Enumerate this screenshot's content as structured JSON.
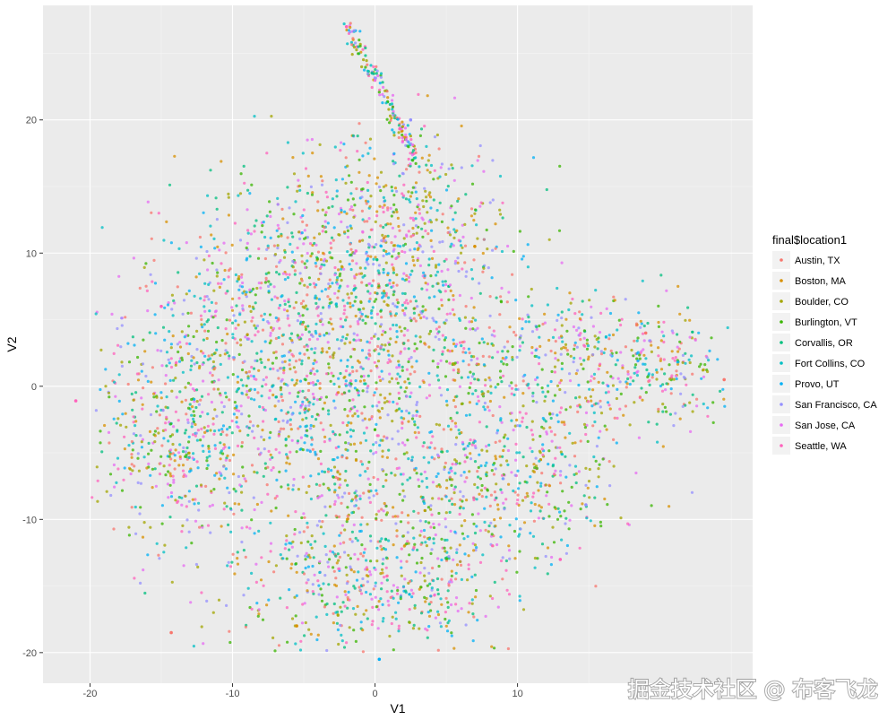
{
  "chart_data": {
    "type": "scatter",
    "title": "",
    "xlabel": "V1",
    "ylabel": "V2",
    "xlim": [
      -23.3,
      26.5
    ],
    "ylim": [
      -22.3,
      28.6
    ],
    "x_ticks": [
      -20,
      -10,
      0,
      10
    ],
    "x_tick_labels": [
      "-20",
      "-10",
      "0",
      "10"
    ],
    "y_ticks": [
      -20,
      -10,
      0,
      10,
      20
    ],
    "y_tick_labels": [
      "-20",
      "-10",
      "0",
      "10",
      "20"
    ],
    "grid": true,
    "legend": {
      "title": "final$location1",
      "position": "right"
    },
    "background": "#ebebeb",
    "series": [
      {
        "name": "Austin, TX",
        "color": "#F8766D"
      },
      {
        "name": "Boston, MA",
        "color": "#D89000"
      },
      {
        "name": "Boulder, CO",
        "color": "#A3A500"
      },
      {
        "name": "Burlington, VT",
        "color": "#39B600"
      },
      {
        "name": "Corvallis, OR",
        "color": "#00BF7D"
      },
      {
        "name": "Fort Collins, CO",
        "color": "#00BFC4"
      },
      {
        "name": "Provo, UT",
        "color": "#00B0F6"
      },
      {
        "name": "San Francisco, CA",
        "color": "#9590FF"
      },
      {
        "name": "San Jose, CA",
        "color": "#E76BF3"
      },
      {
        "name": "Seattle, WA",
        "color": "#FF62BC"
      }
    ],
    "sample_points": [
      {
        "series": "Austin, TX",
        "x": -14.3,
        "y": -18.5
      },
      {
        "series": "Boston, MA",
        "x": -5.5,
        "y": -18.0
      },
      {
        "series": "Seattle, WA",
        "x": -21.0,
        "y": -1.1
      },
      {
        "series": "Provo, UT",
        "x": 0.3,
        "y": -20.5
      },
      {
        "series": "Austin, TX",
        "x": 24.5,
        "y": 0.5
      },
      {
        "series": "Seattle, WA",
        "x": -2.0,
        "y": 27.0
      },
      {
        "series": "San Francisco, CA",
        "x": 2.5,
        "y": 20.0
      },
      {
        "series": "Boston, MA",
        "x": 7.0,
        "y": 10.5
      },
      {
        "series": "Seattle, WA",
        "x": 13.0,
        "y": -13.0
      },
      {
        "series": "San Francisco, CA",
        "x": 14.8,
        "y": -8.9
      },
      {
        "series": "Austin, TX",
        "x": 19.0,
        "y": 4.0
      },
      {
        "series": "Seattle, WA",
        "x": -15.0,
        "y": 6.0
      }
    ]
  },
  "watermark": "掘金技术社区 @ 布客飞龙"
}
